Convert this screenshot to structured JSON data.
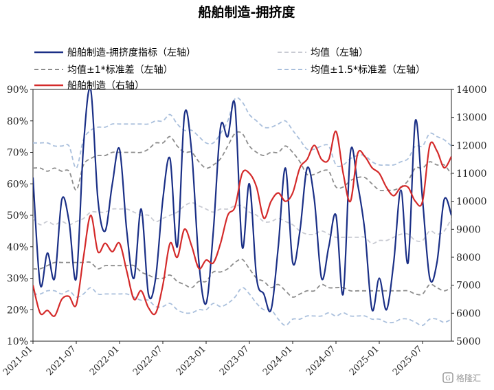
{
  "chart_data": {
    "type": "line",
    "title": "船舶制造-拥挤度",
    "x": [
      "2021-01",
      "2021-02",
      "2021-03",
      "2021-04",
      "2021-05",
      "2021-06",
      "2021-07",
      "2021-08",
      "2021-09",
      "2021-10",
      "2021-11",
      "2021-12",
      "2022-01",
      "2022-02",
      "2022-03",
      "2022-04",
      "2022-05",
      "2022-06",
      "2022-07",
      "2022-08",
      "2022-09",
      "2022-10",
      "2022-11",
      "2022-12",
      "2023-01",
      "2023-02",
      "2023-03",
      "2023-04",
      "2023-05",
      "2023-06",
      "2023-07",
      "2023-08",
      "2023-09",
      "2023-10",
      "2023-11",
      "2023-12",
      "2024-01",
      "2024-02",
      "2024-03",
      "2024-04",
      "2024-05",
      "2024-06",
      "2024-07",
      "2024-08",
      "2024-09",
      "2024-10",
      "2024-11",
      "2024-12",
      "2025-01",
      "2025-02",
      "2025-03",
      "2025-04",
      "2025-05",
      "2025-06",
      "2025-07",
      "2025-08",
      "2025-09",
      "2025-10",
      "2025-11"
    ],
    "x_tick_labels": [
      "2021-01",
      "2021-07",
      "2022-01",
      "2022-07",
      "2023-01",
      "2023-07",
      "2024-01",
      "2024-07",
      "2025-01",
      "2025-07"
    ],
    "left_axis": {
      "ticks": [
        "10%",
        "20%",
        "30%",
        "40%",
        "50%",
        "60%",
        "70%",
        "80%",
        "90%"
      ],
      "ylim": [
        10,
        90
      ]
    },
    "right_axis": {
      "ticks": [
        "5000",
        "6000",
        "7000",
        "8000",
        "9000",
        "10000",
        "11000",
        "12000",
        "13000",
        "14000"
      ],
      "ylim": [
        5000,
        14000
      ]
    },
    "series": [
      {
        "name": "船舶制造-拥挤度指标（左轴）",
        "axis": "left",
        "color": "#1a2f86",
        "style": "solid",
        "values": [
          62,
          28,
          38,
          30,
          55,
          48,
          30,
          72,
          90,
          55,
          45,
          60,
          71,
          45,
          30,
          52,
          25,
          30,
          55,
          68,
          40,
          82,
          70,
          35,
          22,
          45,
          78,
          75,
          85,
          40,
          60,
          30,
          25,
          20,
          40,
          65,
          35,
          45,
          65,
          55,
          30,
          40,
          50,
          25,
          70,
          60,
          45,
          20,
          30,
          20,
          35,
          58,
          35,
          80,
          55,
          30,
          35,
          55,
          50
        ]
      },
      {
        "name": "均值（左轴）",
        "axis": "left",
        "color": "#c9cbd3",
        "style": "dashed",
        "values": [
          49,
          47,
          48,
          47,
          48,
          47,
          48,
          49,
          51,
          51,
          51,
          52,
          52,
          52,
          51,
          50,
          50,
          48,
          49,
          50,
          51,
          53,
          54,
          53,
          52,
          51,
          52,
          52,
          53,
          53,
          51,
          50,
          48,
          48,
          49,
          48,
          47,
          45,
          44,
          44,
          45,
          44,
          43,
          43,
          43,
          43,
          43,
          41,
          42,
          42,
          43,
          44,
          44,
          42,
          42,
          45,
          44,
          45,
          49
        ]
      },
      {
        "name": "均值±1*标准差（左轴）",
        "axis": "left",
        "color": "#8c8c8c",
        "style": "dashed",
        "upper": [
          65,
          65,
          64,
          65,
          64,
          64,
          58,
          66,
          68,
          69,
          69,
          70,
          70,
          70,
          70,
          70,
          71,
          73,
          73,
          75,
          72,
          70,
          70,
          67,
          65,
          66,
          68,
          72,
          76,
          76,
          72,
          70,
          69,
          70,
          70,
          72,
          70,
          67,
          63,
          63,
          64,
          64,
          59,
          59,
          61,
          62,
          62,
          60,
          58,
          58,
          58,
          59,
          61,
          65,
          65,
          67,
          66,
          66,
          63
        ],
        "lower": [
          33,
          33,
          34,
          35,
          35,
          35,
          35,
          35,
          35,
          33,
          34,
          34,
          34,
          34,
          34,
          32,
          31,
          30,
          30,
          31,
          29,
          28,
          27,
          29,
          29,
          32,
          32,
          33,
          35,
          36,
          33,
          30,
          29,
          27,
          28,
          26,
          24,
          25,
          26,
          26,
          28,
          27,
          27,
          27,
          26,
          26,
          26,
          26,
          26,
          26,
          26,
          26,
          26,
          25,
          25,
          28,
          27,
          26,
          27
        ]
      },
      {
        "name": "均值±1.5*标准差（左轴）",
        "axis": "left",
        "color": "#a9bfdc",
        "style": "dashed",
        "upper": [
          73,
          73,
          73,
          72,
          72,
          72,
          65,
          74,
          77,
          78,
          78,
          79,
          79,
          79,
          79,
          79,
          79,
          80,
          80,
          82,
          79,
          77,
          77,
          75,
          73,
          73,
          76,
          80,
          87,
          86,
          82,
          80,
          78,
          78,
          79,
          80,
          77,
          74,
          71,
          71,
          72,
          72,
          66,
          66,
          68,
          69,
          69,
          67,
          66,
          66,
          66,
          67,
          68,
          72,
          72,
          76,
          75,
          74,
          72
        ],
        "lower": [
          25,
          25,
          26,
          26,
          25,
          26,
          24,
          25,
          27,
          25,
          25,
          25,
          25,
          25,
          24,
          23,
          23,
          21,
          21,
          22,
          20,
          19,
          19,
          20,
          20,
          22,
          21,
          22,
          24,
          27,
          25,
          22,
          20,
          20,
          17,
          15,
          17,
          17,
          18,
          18,
          18,
          19,
          18,
          19,
          18,
          18,
          18,
          17,
          17,
          16,
          16,
          17,
          17,
          16,
          15,
          17,
          17,
          16,
          17
        ]
      },
      {
        "name": "船舶制造（右轴）",
        "axis": "right",
        "color": "#d42a2a",
        "style": "solid",
        "values": [
          7000,
          6000,
          6100,
          5900,
          6500,
          6600,
          6300,
          8000,
          9500,
          8200,
          8500,
          8200,
          8500,
          7500,
          6500,
          6800,
          6200,
          6000,
          7000,
          8500,
          8000,
          9000,
          8400,
          7600,
          7900,
          7800,
          8500,
          9500,
          9800,
          11000,
          11000,
          10500,
          9400,
          10000,
          10300,
          10000,
          10300,
          11200,
          11500,
          12000,
          11500,
          11500,
          12500,
          11000,
          10000,
          11700,
          11600,
          11200,
          11000,
          10500,
          10200,
          10500,
          10500,
          10000,
          10000,
          12000,
          11800,
          11200,
          11600
        ]
      }
    ]
  },
  "watermark": {
    "text": "格隆汇",
    "icon": "g-logo-icon"
  }
}
